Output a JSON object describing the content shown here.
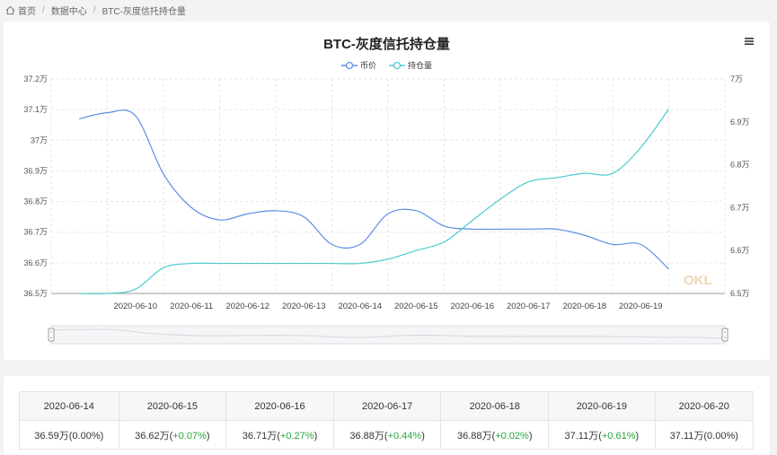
{
  "breadcrumb": {
    "home": "首页",
    "center": "数据中心",
    "current": "BTC-灰度信托持仓量"
  },
  "chart_data": {
    "type": "line",
    "title": "BTC-灰度信托持仓量",
    "categories": [
      "2020-06-10",
      "2020-06-11",
      "2020-06-12",
      "2020-06-13",
      "2020-06-14",
      "2020-06-15",
      "2020-06-16",
      "2020-06-17",
      "2020-06-18",
      "2020-06-19"
    ],
    "x": [
      0,
      0.5,
      1,
      1.5,
      2,
      2.5,
      3,
      3.5,
      4,
      4.5,
      5,
      5.5,
      6,
      6.5,
      7,
      7.5,
      8,
      8.5,
      9,
      9.5,
      10,
      10.5
    ],
    "series": [
      {
        "name": "币价",
        "axis": "left",
        "color": "#5b8ee6",
        "values": [
          37.07,
          37.09,
          37.08,
          36.89,
          36.78,
          36.74,
          36.76,
          36.77,
          36.75,
          36.66,
          36.66,
          36.76,
          36.77,
          36.72,
          36.71,
          36.71,
          36.71,
          36.71,
          36.69,
          36.66,
          36.66,
          36.58
        ]
      },
      {
        "name": "持仓量",
        "axis": "right",
        "color": "#4ecbce",
        "values": [
          6.5,
          6.5,
          6.51,
          6.56,
          6.57,
          6.57,
          6.57,
          6.57,
          6.57,
          6.57,
          6.57,
          6.58,
          6.6,
          6.62,
          6.67,
          6.72,
          6.76,
          6.77,
          6.78,
          6.78,
          6.84,
          6.93
        ]
      }
    ],
    "y_left": {
      "ticks": [
        "36.5万",
        "36.6万",
        "36.7万",
        "36.8万",
        "36.9万",
        "37万",
        "37.1万",
        "37.2万"
      ],
      "ylim": [
        36.5,
        37.2
      ]
    },
    "y_right": {
      "ticks": [
        "6.5万",
        "6.6万",
        "6.7万",
        "6.8万",
        "6.9万",
        "7万"
      ],
      "ylim": [
        6.5,
        7.0
      ]
    },
    "grid": true,
    "legend_position": "top-center"
  },
  "table": {
    "dates": [
      "2020-06-14",
      "2020-06-15",
      "2020-06-16",
      "2020-06-17",
      "2020-06-18",
      "2020-06-19",
      "2020-06-20"
    ],
    "values": [
      "36.59万",
      "36.62万",
      "36.71万",
      "36.88万",
      "36.88万",
      "37.11万",
      "37.11万"
    ],
    "changes": [
      "(0.00%)",
      "(+0.07%)",
      "(+0.27%)",
      "(+0.44%)",
      "(+0.02%)",
      "(+0.61%)",
      "(0.00%)"
    ],
    "change_positive": [
      false,
      true,
      true,
      true,
      true,
      true,
      false
    ]
  },
  "colors": {
    "price": "#5b8ee6",
    "holdings": "#4ecbce",
    "positive": "#2aa640"
  },
  "watermark": "OKLink"
}
